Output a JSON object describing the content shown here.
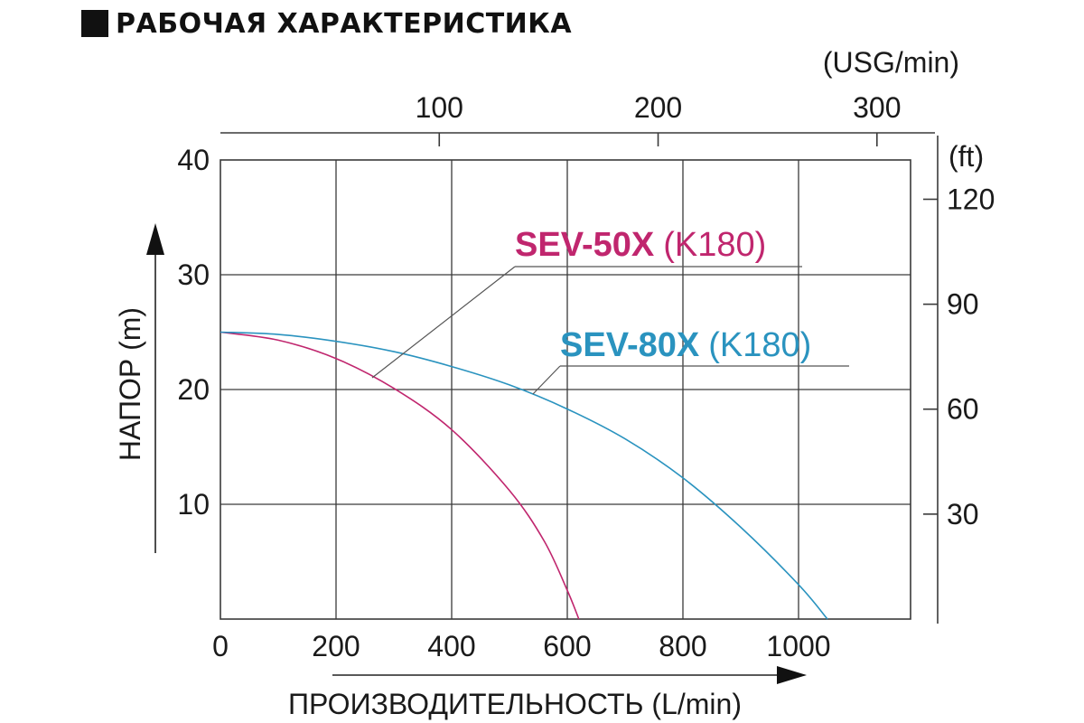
{
  "title": "РАБОЧАЯ ХАРАКТЕРИСТИКА",
  "chart_data": {
    "type": "line",
    "title": "РАБОЧАЯ ХАРАКТЕРИСТИКА",
    "xlabel": "ПРОИЗВОДИТЕЛЬНОСТЬ (L/min)",
    "ylabel": "НАПОР  (m)",
    "x_top_label": "(USG/min)",
    "y_right_label": "(ft)",
    "xlim": [
      0,
      1150
    ],
    "ylim": [
      0,
      40
    ],
    "x_ticks": [
      0,
      200,
      400,
      600,
      800,
      1000
    ],
    "y_ticks": [
      10,
      20,
      30,
      40
    ],
    "x_top_ticks": [
      100,
      200,
      300
    ],
    "y_right_ticks": [
      30,
      60,
      90,
      120
    ],
    "grid": true,
    "colors": {
      "SEV-50X": "#c0266e",
      "SEV-80X": "#2a93bf",
      "grid": "#3a3a3a"
    },
    "series": [
      {
        "name": "SEV-50X",
        "name_bold": "SEV-50X",
        "name_suffix": "(K180)",
        "x": [
          0,
          100,
          200,
          300,
          400,
          500,
          560,
          600,
          620
        ],
        "y": [
          25,
          24.3,
          22.7,
          20.1,
          16.5,
          11.2,
          6.8,
          2.5,
          0
        ]
      },
      {
        "name": "SEV-80X",
        "name_bold": "SEV-80X",
        "name_suffix": "(K180)",
        "x": [
          0,
          100,
          200,
          300,
          400,
          500,
          600,
          700,
          800,
          900,
          1000,
          1050
        ],
        "y": [
          25,
          24.8,
          24.2,
          23.3,
          22.0,
          20.4,
          18.3,
          15.7,
          12.3,
          8.0,
          3.0,
          0
        ]
      }
    ]
  }
}
